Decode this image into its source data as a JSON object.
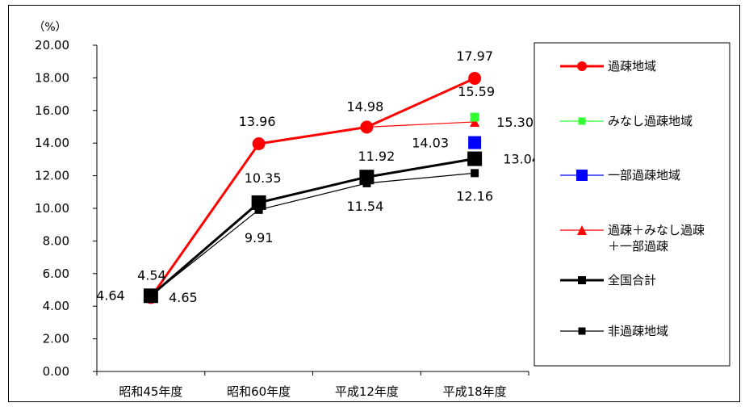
{
  "chart_data": {
    "type": "line",
    "unit": "（%）",
    "categories": [
      "昭和45年度",
      "昭和60年度",
      "平成12年度",
      "平成18年度"
    ],
    "ylim": [
      0,
      20
    ],
    "ytick_labels": [
      "0.00",
      "2.00",
      "4.00",
      "6.00",
      "8.00",
      "10.00",
      "12.00",
      "14.00",
      "16.00",
      "18.00",
      "20.00"
    ],
    "grid": false,
    "legend_position": "right",
    "series": [
      {
        "name": "過疎地域",
        "values": [
          4.54,
          13.96,
          14.98,
          17.97
        ],
        "labels": [
          "4.54",
          "13.96",
          "14.98",
          "17.97"
        ],
        "color": "#ff0000",
        "marker": "circle",
        "weight": "thick"
      },
      {
        "name": "みなし過疎地域",
        "values": [
          null,
          null,
          null,
          15.59
        ],
        "labels": [
          "",
          "",
          "",
          "15.59"
        ],
        "color": "#33ff33",
        "marker": "square",
        "weight": "thin"
      },
      {
        "name": "一部過疎地域",
        "values": [
          null,
          null,
          null,
          14.03
        ],
        "labels": [
          "",
          "",
          "",
          "14.03"
        ],
        "color": "#0000ff",
        "marker": "square",
        "weight": "thin"
      },
      {
        "name": "過疎＋みなし過疎\n＋一部過疎",
        "values": [
          4.54,
          13.96,
          14.98,
          15.3
        ],
        "labels": [
          "",
          "",
          "",
          "15.30"
        ],
        "color": "#ff0000",
        "marker": "triangle",
        "weight": "thin"
      },
      {
        "name": "全国合計",
        "values": [
          4.64,
          10.35,
          11.92,
          13.04
        ],
        "labels": [
          "4.64",
          "10.35",
          "11.92",
          "13.04"
        ],
        "color": "#000000",
        "marker": "square",
        "weight": "thick"
      },
      {
        "name": "非過疎地域",
        "values": [
          4.65,
          9.91,
          11.54,
          12.16
        ],
        "labels": [
          "4.65",
          "9.91",
          "11.54",
          "12.16"
        ],
        "color": "#000000",
        "marker": "square",
        "weight": "thin"
      }
    ]
  }
}
